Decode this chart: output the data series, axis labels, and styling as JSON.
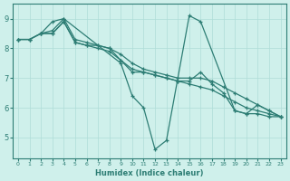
{
  "xlabel": "Humidex (Indice chaleur)",
  "xlim": [
    -0.5,
    23.5
  ],
  "ylim": [
    4.3,
    9.5
  ],
  "yticks": [
    5,
    6,
    7,
    8,
    9
  ],
  "xticks": [
    0,
    1,
    2,
    3,
    4,
    5,
    6,
    7,
    8,
    9,
    10,
    11,
    12,
    13,
    14,
    15,
    16,
    17,
    18,
    19,
    20,
    21,
    22,
    23
  ],
  "bg_color": "#cff0eb",
  "line_color": "#2d7d74",
  "grid_color": "#aeddd8",
  "lines": [
    {
      "x": [
        0,
        1,
        2,
        3,
        4,
        9,
        10,
        11,
        12,
        13,
        15,
        16,
        19,
        20,
        21,
        22,
        23
      ],
      "y": [
        8.3,
        8.3,
        8.5,
        8.9,
        9.0,
        7.5,
        6.4,
        6.0,
        4.6,
        4.9,
        9.1,
        8.9,
        5.9,
        5.8,
        6.1,
        5.9,
        5.7
      ]
    },
    {
      "x": [
        0,
        1,
        2,
        3,
        4,
        5,
        6,
        7,
        8,
        9,
        10,
        11,
        12,
        13,
        14,
        15,
        16,
        17,
        18,
        19,
        20,
        21,
        22,
        23
      ],
      "y": [
        8.3,
        8.3,
        8.5,
        8.6,
        9.0,
        8.3,
        8.2,
        8.1,
        8.0,
        7.8,
        7.5,
        7.3,
        7.2,
        7.1,
        7.0,
        7.0,
        7.0,
        6.9,
        6.7,
        6.5,
        6.3,
        6.1,
        5.9,
        5.7
      ]
    },
    {
      "x": [
        2,
        3,
        4,
        5,
        6,
        7,
        8,
        9,
        10,
        11,
        12,
        13,
        14,
        15,
        16,
        17,
        18,
        19,
        20,
        21,
        22,
        23
      ],
      "y": [
        8.5,
        8.5,
        8.9,
        8.2,
        8.1,
        8.1,
        8.0,
        7.6,
        7.2,
        7.2,
        7.1,
        7.0,
        6.9,
        6.9,
        7.2,
        6.8,
        6.5,
        5.9,
        5.8,
        5.8,
        5.7,
        5.7
      ]
    },
    {
      "x": [
        0,
        1,
        2,
        3,
        4,
        5,
        6,
        7,
        8,
        9,
        10,
        11,
        12,
        13,
        14,
        15,
        16,
        17,
        18,
        19,
        20,
        21,
        22,
        23
      ],
      "y": [
        8.3,
        8.3,
        8.5,
        8.5,
        8.9,
        8.2,
        8.1,
        8.0,
        7.9,
        7.6,
        7.3,
        7.2,
        7.1,
        7.0,
        6.9,
        6.8,
        6.7,
        6.6,
        6.4,
        6.2,
        6.0,
        5.9,
        5.8,
        5.7
      ]
    }
  ]
}
